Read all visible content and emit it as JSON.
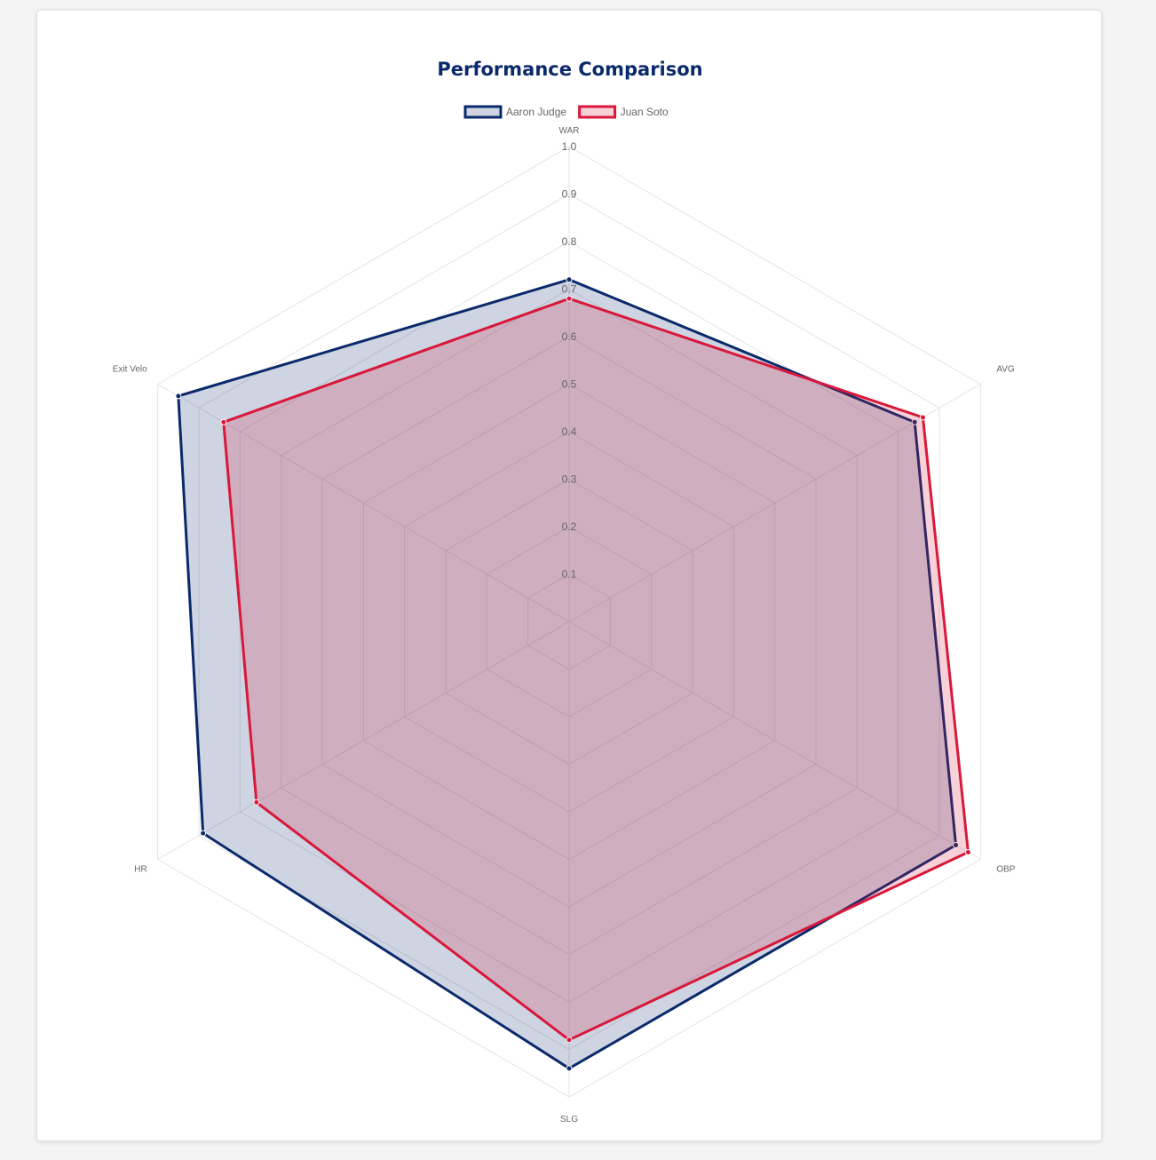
{
  "chart_data": {
    "type": "radar",
    "title": "Performance Comparison",
    "axes": [
      "WAR",
      "AVG",
      "OBP",
      "SLG",
      "HR",
      "Exit Velo"
    ],
    "r_range": [
      0,
      1.0
    ],
    "ticks": [
      "0.1",
      "0.2",
      "0.3",
      "0.4",
      "0.5",
      "0.6",
      "0.7",
      "0.8",
      "0.9",
      "1.0"
    ],
    "legend_position": "top",
    "grid": true,
    "series": [
      {
        "name": "Aaron Judge",
        "values": [
          0.72,
          0.84,
          0.94,
          0.94,
          0.89,
          0.95
        ],
        "line_color": "#0b2a6b",
        "fill_color": "rgba(11,42,107,0.2)"
      },
      {
        "name": "Juan Soto",
        "values": [
          0.68,
          0.86,
          0.97,
          0.88,
          0.76,
          0.84
        ],
        "line_color": "#d9183b",
        "fill_color": "rgba(217,24,59,0.2)"
      }
    ]
  }
}
